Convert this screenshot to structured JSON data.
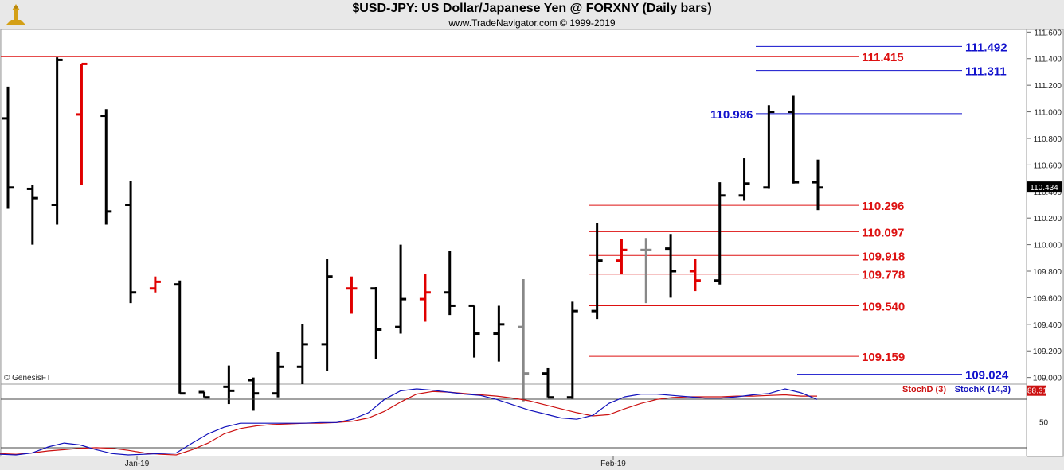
{
  "header": {
    "title": "$USD-JPY:  US Dollar/Japanese Yen @ FORXNY  (Daily bars)",
    "subtitle": "www.TradeNavigator.com © 1999-2019"
  },
  "watermark": "© GenesisFT",
  "chart_data": [
    {
      "type": "ohlc",
      "ylim": [
        108.95,
        111.62
      ],
      "y_ticks": [
        "111.600",
        "111.400",
        "111.200",
        "111.000",
        "110.800",
        "110.600",
        "110.400",
        "110.200",
        "110.000",
        "109.800",
        "109.600",
        "109.400",
        "109.200",
        "109.000"
      ],
      "x_labels": [
        "Jan-19",
        "Feb-19"
      ],
      "last_price": "110.434",
      "bars": [
        {
          "o": 110.95,
          "h": 111.19,
          "l": 110.27,
          "c": 110.43,
          "color": "black"
        },
        {
          "o": 110.42,
          "h": 110.45,
          "l": 110.0,
          "c": 110.35,
          "color": "black"
        },
        {
          "o": 110.3,
          "h": 111.41,
          "l": 110.15,
          "c": 111.39,
          "color": "black"
        },
        {
          "o": 110.98,
          "h": 111.36,
          "l": 110.45,
          "c": 111.36,
          "color": "red"
        },
        {
          "o": 110.97,
          "h": 111.02,
          "l": 110.15,
          "c": 110.25,
          "color": "black"
        },
        {
          "o": 110.3,
          "h": 110.48,
          "l": 109.56,
          "c": 109.64,
          "color": "black"
        },
        {
          "o": 109.67,
          "h": 109.76,
          "l": 109.64,
          "c": 109.72,
          "color": "red"
        },
        {
          "o": 109.7,
          "h": 109.73,
          "l": 108.88,
          "c": 108.88,
          "color": "black"
        },
        {
          "o": 108.89,
          "h": 108.89,
          "l": 108.85,
          "c": 108.85,
          "color": "black"
        },
        {
          "o": 108.93,
          "h": 109.09,
          "l": 108.8,
          "c": 108.9,
          "color": "black"
        },
        {
          "o": 108.98,
          "h": 109.0,
          "l": 108.75,
          "c": 108.88,
          "color": "black"
        },
        {
          "o": 108.88,
          "h": 109.19,
          "l": 108.85,
          "c": 109.08,
          "color": "black"
        },
        {
          "o": 109.08,
          "h": 109.4,
          "l": 108.95,
          "c": 109.25,
          "color": "black"
        },
        {
          "o": 109.25,
          "h": 109.89,
          "l": 109.05,
          "c": 109.76,
          "color": "black"
        },
        {
          "o": 109.67,
          "h": 109.76,
          "l": 109.48,
          "c": 109.67,
          "color": "red"
        },
        {
          "o": 109.67,
          "h": 109.68,
          "l": 109.14,
          "c": 109.36,
          "color": "black"
        },
        {
          "o": 109.38,
          "h": 110.0,
          "l": 109.33,
          "c": 109.59,
          "color": "black"
        },
        {
          "o": 109.59,
          "h": 109.78,
          "l": 109.42,
          "c": 109.64,
          "color": "red"
        },
        {
          "o": 109.64,
          "h": 109.95,
          "l": 109.47,
          "c": 109.54,
          "color": "black"
        },
        {
          "o": 109.54,
          "h": 109.54,
          "l": 109.15,
          "c": 109.33,
          "color": "black"
        },
        {
          "o": 109.33,
          "h": 109.54,
          "l": 109.12,
          "c": 109.4,
          "color": "black"
        },
        {
          "o": 109.38,
          "h": 109.74,
          "l": 108.82,
          "c": 109.03,
          "color": "gray"
        },
        {
          "o": 109.03,
          "h": 109.07,
          "l": 108.85,
          "c": 108.85,
          "color": "black"
        },
        {
          "o": 108.85,
          "h": 109.57,
          "l": 108.84,
          "c": 109.5,
          "color": "black"
        },
        {
          "o": 109.5,
          "h": 110.16,
          "l": 109.44,
          "c": 109.88,
          "color": "black"
        },
        {
          "o": 109.88,
          "h": 110.04,
          "l": 109.78,
          "c": 109.96,
          "color": "red"
        },
        {
          "o": 109.96,
          "h": 110.05,
          "l": 109.56,
          "c": 109.96,
          "color": "gray"
        },
        {
          "o": 109.97,
          "h": 110.08,
          "l": 109.6,
          "c": 109.8,
          "color": "black"
        },
        {
          "o": 109.8,
          "h": 109.89,
          "l": 109.65,
          "c": 109.73,
          "color": "red"
        },
        {
          "o": 109.73,
          "h": 110.47,
          "l": 109.7,
          "c": 110.37,
          "color": "black"
        },
        {
          "o": 110.37,
          "h": 110.65,
          "l": 110.33,
          "c": 110.46,
          "color": "black"
        },
        {
          "o": 110.43,
          "h": 111.05,
          "l": 110.42,
          "c": 111.0,
          "color": "black"
        },
        {
          "o": 111.0,
          "h": 111.12,
          "l": 110.46,
          "c": 110.47,
          "color": "black"
        },
        {
          "o": 110.47,
          "h": 110.64,
          "l": 110.26,
          "c": 110.43,
          "color": "black"
        }
      ],
      "levels": [
        {
          "value": 111.492,
          "label": "111.492",
          "color": "#1111cc"
        },
        {
          "value": 111.415,
          "label": "111.415",
          "color": "#dd1111"
        },
        {
          "value": 111.311,
          "label": "111.311",
          "color": "#1111cc"
        },
        {
          "value": 110.986,
          "label": "110.986",
          "color": "#1111cc"
        },
        {
          "value": 110.296,
          "label": "110.296",
          "color": "#dd1111"
        },
        {
          "value": 110.097,
          "label": "110.097",
          "color": "#dd1111"
        },
        {
          "value": 109.918,
          "label": "109.918",
          "color": "#dd1111"
        },
        {
          "value": 109.778,
          "label": "109.778",
          "color": "#dd1111"
        },
        {
          "value": 109.54,
          "label": "109.540",
          "color": "#dd1111"
        },
        {
          "value": 109.159,
          "label": "109.159",
          "color": "#dd1111"
        },
        {
          "value": 109.024,
          "label": "109.024",
          "color": "#1111cc"
        }
      ]
    },
    {
      "type": "line",
      "ylim": [
        0,
        100
      ],
      "y_ticks": [
        "50"
      ],
      "legend": [
        "StochD (3)",
        "StochK (14,3)"
      ],
      "last_value": "88.31",
      "series": [
        {
          "name": "StochD (3)",
          "color": "#cc1111",
          "values": [
            2,
            1,
            3,
            6,
            8,
            10,
            11,
            10,
            7,
            3,
            1,
            0,
            8,
            18,
            32,
            40,
            44,
            46,
            47,
            48,
            48,
            49,
            51,
            56,
            66,
            80,
            92,
            96,
            95,
            93,
            91,
            89,
            86,
            82,
            76,
            70,
            64,
            59,
            61,
            70,
            78,
            84,
            87,
            88,
            88,
            88,
            89,
            89,
            90,
            91,
            89,
            89
          ]
        },
        {
          "name": "StochK (14,3)",
          "color": "#1111bb",
          "values": [
            1,
            0,
            3,
            12,
            18,
            15,
            8,
            2,
            0,
            1,
            2,
            3,
            18,
            32,
            42,
            48,
            48,
            48,
            48,
            48,
            49,
            49,
            54,
            64,
            84,
            97,
            100,
            98,
            95,
            92,
            90,
            84,
            76,
            68,
            62,
            56,
            54,
            60,
            78,
            88,
            92,
            92,
            90,
            88,
            86,
            86,
            88,
            91,
            93,
            100,
            94,
            84
          ]
        }
      ]
    }
  ]
}
